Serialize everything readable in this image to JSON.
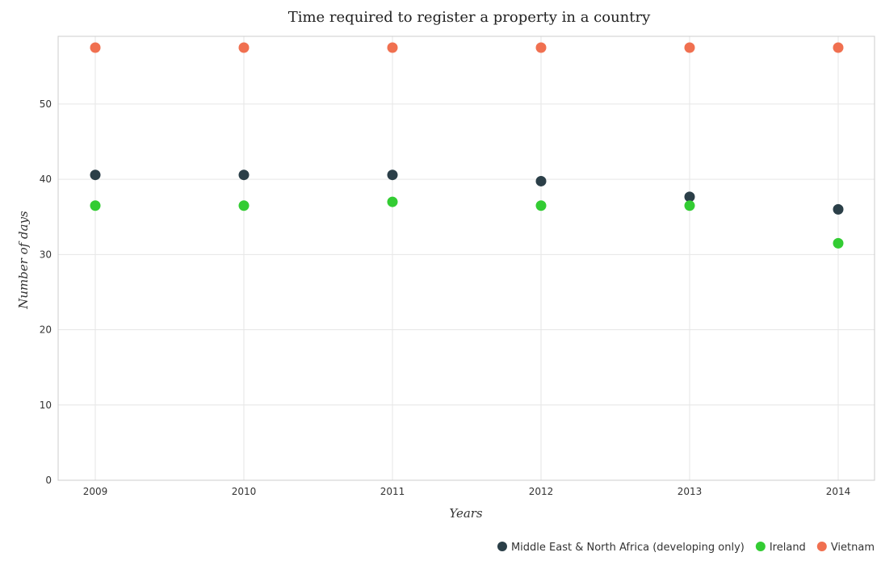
{
  "chart_data": {
    "type": "scatter",
    "title": "Time required to register a property in a country",
    "xlabel": "Years",
    "ylabel": "Number of days",
    "categories": [
      "2009",
      "2010",
      "2011",
      "2012",
      "2013",
      "2014"
    ],
    "ylim": [
      0,
      59
    ],
    "yticks": [
      0,
      10,
      20,
      30,
      40,
      50
    ],
    "grid": true,
    "legend_position": "bottom-right",
    "series": [
      {
        "name": "Middle East & North Africa (developing only)",
        "color": "#2b3f48",
        "values": [
          40.58,
          40.58,
          40.58,
          39.75,
          37.67,
          36.0
        ]
      },
      {
        "name": "Ireland",
        "color": "#33cc33",
        "values": [
          36.5,
          36.5,
          37.0,
          36.5,
          36.5,
          31.5
        ]
      },
      {
        "name": "Vietnam",
        "color": "#f07050",
        "values": [
          57.5,
          57.5,
          57.5,
          57.5,
          57.5,
          57.5
        ]
      }
    ]
  }
}
